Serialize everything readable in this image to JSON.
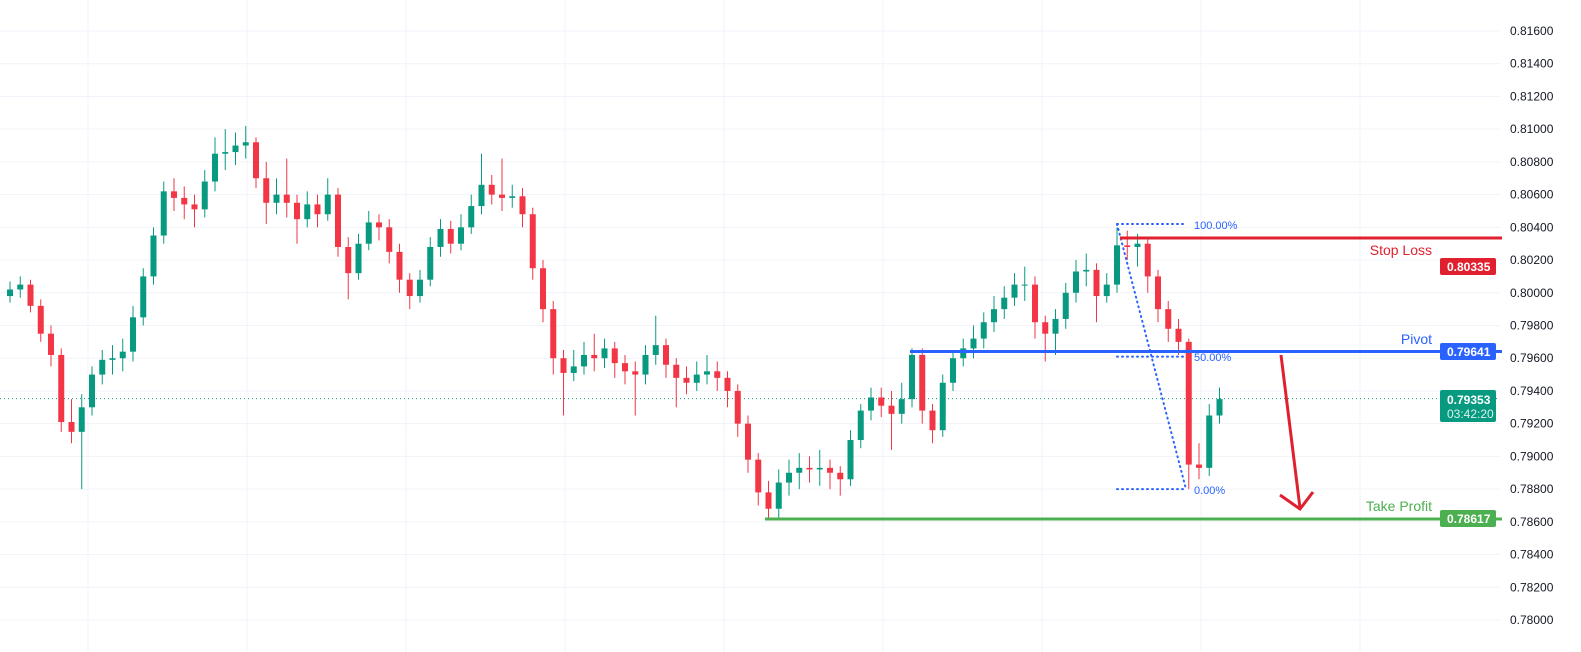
{
  "chart_data": {
    "type": "candlestick",
    "ylim": [
      0.779,
      0.8175
    ],
    "yticks": [
      "0.78000",
      "0.78200",
      "0.78400",
      "0.78600",
      "0.78800",
      "0.79000",
      "0.79200",
      "0.79400",
      "0.79600",
      "0.79800",
      "0.80000",
      "0.80200",
      "0.80400",
      "0.80600",
      "0.80800",
      "0.81000",
      "0.81200",
      "0.81400",
      "0.81600"
    ],
    "grid": true,
    "colors": {
      "up": "#089981",
      "down": "#f23645",
      "stop": "#e0202f",
      "pivot": "#2962ff",
      "take": "#4caf50",
      "fib": "#2962ff",
      "arrow": "#e0202f",
      "current": "#089981"
    },
    "candles_ohlc": [
      [
        0.7998,
        0.8007,
        0.7994,
        0.8002
      ],
      [
        0.8002,
        0.801,
        0.7997,
        0.8005
      ],
      [
        0.8005,
        0.8008,
        0.7988,
        0.7992
      ],
      [
        0.7992,
        0.7996,
        0.797,
        0.7975
      ],
      [
        0.7975,
        0.798,
        0.7955,
        0.7962
      ],
      [
        0.7962,
        0.7966,
        0.7915,
        0.7921
      ],
      [
        0.7921,
        0.7935,
        0.7908,
        0.7915
      ],
      [
        0.7915,
        0.7938,
        0.788,
        0.793
      ],
      [
        0.793,
        0.7955,
        0.7925,
        0.795
      ],
      [
        0.795,
        0.7965,
        0.7944,
        0.7959
      ],
      [
        0.7959,
        0.7968,
        0.795,
        0.796
      ],
      [
        0.796,
        0.7972,
        0.7952,
        0.7964
      ],
      [
        0.7964,
        0.7992,
        0.7958,
        0.7985
      ],
      [
        0.7985,
        0.8015,
        0.798,
        0.801
      ],
      [
        0.801,
        0.804,
        0.8005,
        0.8035
      ],
      [
        0.8035,
        0.8068,
        0.803,
        0.8062
      ],
      [
        0.8062,
        0.807,
        0.805,
        0.8058
      ],
      [
        0.8058,
        0.8065,
        0.8045,
        0.8054
      ],
      [
        0.8054,
        0.806,
        0.804,
        0.8051
      ],
      [
        0.8051,
        0.8075,
        0.8046,
        0.8068
      ],
      [
        0.8068,
        0.8095,
        0.8062,
        0.8085
      ],
      [
        0.8085,
        0.81,
        0.8075,
        0.8086
      ],
      [
        0.8086,
        0.8098,
        0.8078,
        0.809
      ],
      [
        0.809,
        0.8102,
        0.8082,
        0.8092
      ],
      [
        0.8092,
        0.8095,
        0.8064,
        0.807
      ],
      [
        0.807,
        0.808,
        0.8042,
        0.8055
      ],
      [
        0.8055,
        0.807,
        0.8048,
        0.806
      ],
      [
        0.806,
        0.8082,
        0.8046,
        0.8055
      ],
      [
        0.8055,
        0.806,
        0.803,
        0.8045
      ],
      [
        0.8045,
        0.8062,
        0.804,
        0.8054
      ],
      [
        0.8054,
        0.806,
        0.804,
        0.8048
      ],
      [
        0.8048,
        0.807,
        0.8044,
        0.806
      ],
      [
        0.806,
        0.8064,
        0.8022,
        0.8028
      ],
      [
        0.8028,
        0.8034,
        0.7996,
        0.8012
      ],
      [
        0.8012,
        0.8036,
        0.8008,
        0.803
      ],
      [
        0.803,
        0.805,
        0.8026,
        0.8043
      ],
      [
        0.8043,
        0.8048,
        0.8032,
        0.804
      ],
      [
        0.804,
        0.8045,
        0.8018,
        0.8025
      ],
      [
        0.8025,
        0.803,
        0.8,
        0.8008
      ],
      [
        0.8008,
        0.8012,
        0.799,
        0.7998
      ],
      [
        0.7998,
        0.8014,
        0.7994,
        0.8008
      ],
      [
        0.8008,
        0.8034,
        0.8004,
        0.8028
      ],
      [
        0.8028,
        0.8045,
        0.8022,
        0.8039
      ],
      [
        0.8039,
        0.8044,
        0.8024,
        0.803
      ],
      [
        0.803,
        0.8048,
        0.8026,
        0.804
      ],
      [
        0.804,
        0.806,
        0.8036,
        0.8053
      ],
      [
        0.8053,
        0.8085,
        0.8048,
        0.8066
      ],
      [
        0.8066,
        0.8072,
        0.8054,
        0.806
      ],
      [
        0.806,
        0.8082,
        0.805,
        0.8058
      ],
      [
        0.8058,
        0.8066,
        0.8052,
        0.8059
      ],
      [
        0.8059,
        0.8064,
        0.804,
        0.8048
      ],
      [
        0.8048,
        0.8052,
        0.8008,
        0.8015
      ],
      [
        0.8015,
        0.802,
        0.7982,
        0.799
      ],
      [
        0.799,
        0.7995,
        0.795,
        0.796
      ],
      [
        0.796,
        0.7965,
        0.7925,
        0.7951
      ],
      [
        0.7951,
        0.7965,
        0.7946,
        0.7955
      ],
      [
        0.7955,
        0.797,
        0.795,
        0.7962
      ],
      [
        0.7962,
        0.7975,
        0.7952,
        0.796
      ],
      [
        0.796,
        0.7972,
        0.7954,
        0.7966
      ],
      [
        0.7966,
        0.797,
        0.7948,
        0.7957
      ],
      [
        0.7957,
        0.7962,
        0.7944,
        0.7952
      ],
      [
        0.7952,
        0.7958,
        0.7925,
        0.795
      ],
      [
        0.795,
        0.7968,
        0.7944,
        0.7962
      ],
      [
        0.7962,
        0.7986,
        0.7956,
        0.7968
      ],
      [
        0.7968,
        0.7972,
        0.7948,
        0.7956
      ],
      [
        0.7956,
        0.796,
        0.793,
        0.7948
      ],
      [
        0.7948,
        0.7955,
        0.7938,
        0.7945
      ],
      [
        0.7945,
        0.7958,
        0.794,
        0.795
      ],
      [
        0.795,
        0.7962,
        0.7944,
        0.7952
      ],
      [
        0.7952,
        0.7958,
        0.794,
        0.7948
      ],
      [
        0.7948,
        0.7952,
        0.793,
        0.794
      ],
      [
        0.794,
        0.7944,
        0.7912,
        0.792
      ],
      [
        0.792,
        0.7925,
        0.789,
        0.7898
      ],
      [
        0.7898,
        0.7902,
        0.787,
        0.7878
      ],
      [
        0.7878,
        0.7885,
        0.7862,
        0.7868
      ],
      [
        0.7868,
        0.7892,
        0.7862,
        0.7884
      ],
      [
        0.7884,
        0.7898,
        0.7876,
        0.789
      ],
      [
        0.789,
        0.7902,
        0.788,
        0.7893
      ],
      [
        0.7893,
        0.79,
        0.7884,
        0.7892
      ],
      [
        0.7892,
        0.7904,
        0.7882,
        0.7893
      ],
      [
        0.7893,
        0.7898,
        0.788,
        0.789
      ],
      [
        0.789,
        0.7894,
        0.7876,
        0.7886
      ],
      [
        0.7886,
        0.7916,
        0.7882,
        0.791
      ],
      [
        0.791,
        0.7932,
        0.7905,
        0.7928
      ],
      [
        0.7928,
        0.7942,
        0.7922,
        0.7936
      ],
      [
        0.7936,
        0.7942,
        0.7924,
        0.7931
      ],
      [
        0.7931,
        0.794,
        0.7904,
        0.7926
      ],
      [
        0.7926,
        0.7945,
        0.792,
        0.7935
      ],
      [
        0.7935,
        0.7966,
        0.793,
        0.7962
      ],
      [
        0.7962,
        0.7966,
        0.792,
        0.7928
      ],
      [
        0.7928,
        0.7932,
        0.7908,
        0.7916
      ],
      [
        0.7916,
        0.795,
        0.7912,
        0.7945
      ],
      [
        0.7945,
        0.7965,
        0.794,
        0.796
      ],
      [
        0.796,
        0.7972,
        0.7955,
        0.7966
      ],
      [
        0.7966,
        0.798,
        0.796,
        0.7972
      ],
      [
        0.7972,
        0.7988,
        0.7966,
        0.7982
      ],
      [
        0.7982,
        0.7998,
        0.7976,
        0.799
      ],
      [
        0.799,
        0.8004,
        0.7984,
        0.7997
      ],
      [
        0.7997,
        0.8012,
        0.7992,
        0.8005
      ],
      [
        0.8005,
        0.8016,
        0.7995,
        0.8005
      ],
      [
        0.8005,
        0.801,
        0.7972,
        0.7982
      ],
      [
        0.7982,
        0.7986,
        0.7958,
        0.7975
      ],
      [
        0.7975,
        0.799,
        0.7962,
        0.7984
      ],
      [
        0.7984,
        0.8006,
        0.7978,
        0.8
      ],
      [
        0.8,
        0.802,
        0.7994,
        0.8013
      ],
      [
        0.8013,
        0.8024,
        0.8004,
        0.8014
      ],
      [
        0.8014,
        0.8018,
        0.7982,
        0.7998
      ],
      [
        0.7998,
        0.8012,
        0.7994,
        0.8005
      ],
      [
        0.8005,
        0.804,
        0.8,
        0.8029
      ],
      [
        0.8029,
        0.8038,
        0.802,
        0.8028
      ],
      [
        0.8028,
        0.8036,
        0.8016,
        0.803
      ],
      [
        0.803,
        0.8034,
        0.8,
        0.801
      ],
      [
        0.801,
        0.8014,
        0.7982,
        0.799
      ],
      [
        0.799,
        0.7995,
        0.797,
        0.7978
      ],
      [
        0.7978,
        0.7984,
        0.7962,
        0.797
      ],
      [
        0.797,
        0.7972,
        0.788,
        0.7895
      ],
      [
        0.7895,
        0.7908,
        0.7886,
        0.7893
      ],
      [
        0.7893,
        0.7932,
        0.7888,
        0.7925
      ],
      [
        0.7925,
        0.7942,
        0.792,
        0.7935
      ]
    ],
    "levels": {
      "stop_loss": {
        "label": "Stop Loss",
        "value": "0.80335",
        "price": 0.80335
      },
      "pivot": {
        "label": "Pivot",
        "value": "0.79641",
        "price": 0.79641
      },
      "take_profit": {
        "label": "Take Profit",
        "value": "0.78617",
        "price": 0.78617
      }
    },
    "current_price": {
      "value": "0.79353",
      "price": 0.79353,
      "countdown": "03:42:20"
    },
    "fibonacci": [
      {
        "label": "100.00%",
        "price": 0.8042
      },
      {
        "label": "50.00%",
        "price": 0.7961
      },
      {
        "label": "0.00%",
        "price": 0.788
      }
    ]
  }
}
